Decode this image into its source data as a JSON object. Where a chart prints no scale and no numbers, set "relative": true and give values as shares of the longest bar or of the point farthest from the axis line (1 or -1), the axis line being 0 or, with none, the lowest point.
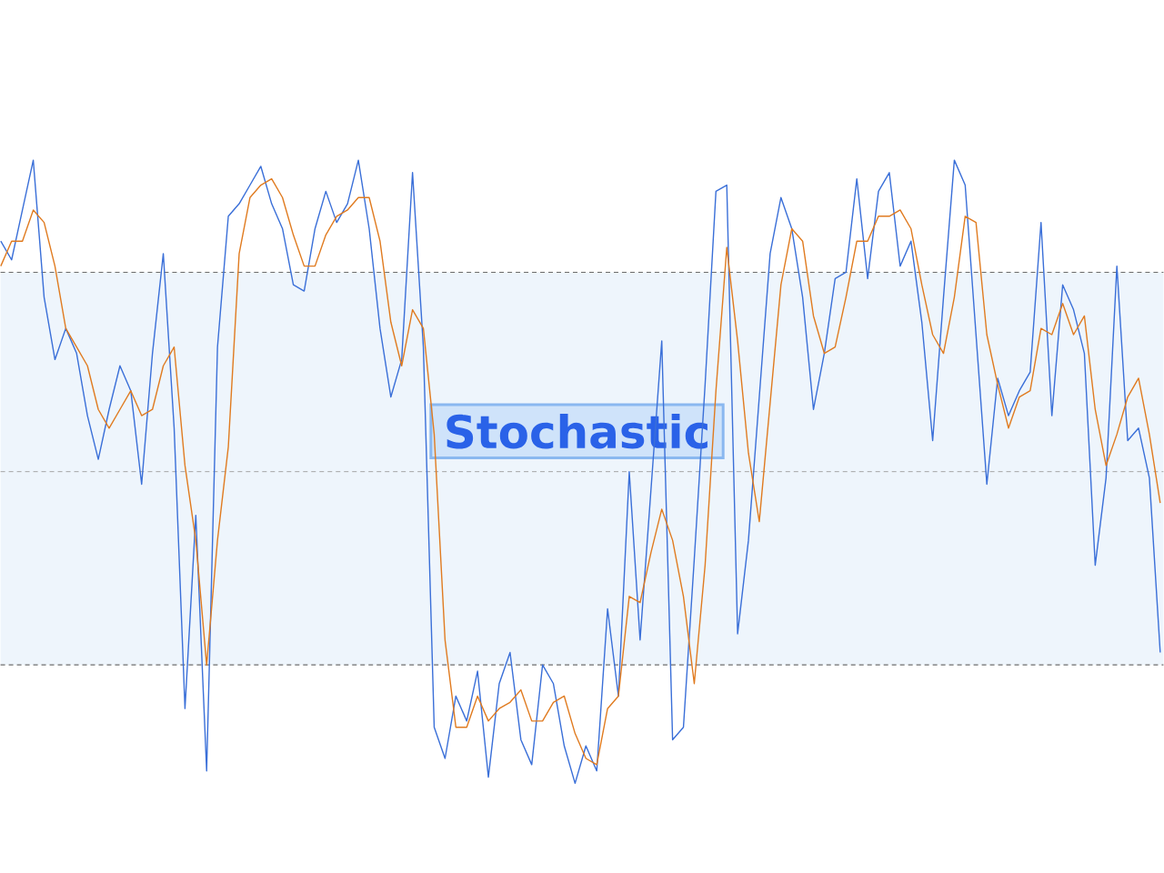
{
  "chart_data": {
    "type": "line",
    "title": "Stochastic",
    "relative": true,
    "categories": [
      null,
      null,
      null,
      null,
      null,
      null,
      null,
      null,
      null,
      null,
      null,
      null,
      null,
      null,
      null,
      null,
      null,
      null,
      null,
      null,
      null,
      null,
      null,
      null,
      null,
      null,
      null,
      null,
      null,
      null,
      null,
      null,
      null,
      null,
      null,
      null,
      null,
      null,
      null,
      null,
      null,
      null,
      null,
      null,
      null,
      null,
      null,
      null,
      null,
      null,
      null,
      null,
      null,
      null,
      null,
      null,
      null,
      null,
      null,
      null,
      null,
      null,
      null,
      null,
      null,
      null,
      null,
      null,
      null,
      null,
      null,
      null,
      null,
      null,
      null,
      null,
      null,
      null,
      null,
      null,
      null,
      null,
      null,
      null,
      null,
      null,
      null,
      null,
      null,
      null,
      null,
      null,
      null,
      null,
      null,
      null,
      null,
      null,
      null,
      null,
      null,
      null,
      null,
      null,
      null,
      null,
      null,
      null
    ],
    "series": [
      {
        "color": "#3a6fd8",
        "values": [
          0.87,
          0.84,
          0.92,
          1.0,
          0.78,
          0.68,
          0.73,
          0.69,
          0.59,
          0.52,
          0.6,
          0.67,
          0.63,
          0.48,
          0.69,
          0.85,
          0.57,
          0.12,
          0.43,
          0.02,
          0.7,
          0.91,
          0.93,
          0.96,
          0.99,
          0.93,
          0.89,
          0.8,
          0.79,
          0.89,
          0.95,
          0.9,
          0.93,
          1.0,
          0.89,
          0.73,
          0.62,
          0.68,
          0.98,
          0.7,
          0.09,
          0.04,
          0.14,
          0.1,
          0.18,
          0.01,
          0.16,
          0.21,
          0.07,
          0.03,
          0.19,
          0.16,
          0.06,
          0,
          0.06,
          0.02,
          0.28,
          0.14,
          0.5,
          0.23,
          0.47,
          0.71,
          0.07,
          0.09,
          0.36,
          0.64,
          0.95,
          0.96,
          0.24,
          0.39,
          0.62,
          0.85,
          0.94,
          0.89,
          0.78,
          0.6,
          0.69,
          0.81,
          0.82,
          0.97,
          0.81,
          0.95,
          0.98,
          0.83,
          0.87,
          0.74,
          0.55,
          0.78,
          1.0,
          0.96,
          0.72,
          0.48,
          0.65,
          0.59,
          0.63,
          0.66,
          0.9,
          0.59,
          0.8,
          0.76,
          0.69,
          0.35,
          0.49,
          0.83,
          0.55,
          0.57,
          0.49,
          0.21
        ]
      },
      {
        "color": "#e07b20",
        "values": [
          0.83,
          0.87,
          0.87,
          0.92,
          0.9,
          0.83,
          0.73,
          0.7,
          0.67,
          0.6,
          0.57,
          0.6,
          0.63,
          0.59,
          0.6,
          0.67,
          0.7,
          0.51,
          0.39,
          0.19,
          0.39,
          0.54,
          0.85,
          0.94,
          0.96,
          0.97,
          0.94,
          0.88,
          0.83,
          0.83,
          0.88,
          0.91,
          0.92,
          0.94,
          0.94,
          0.87,
          0.74,
          0.67,
          0.76,
          0.73,
          0.56,
          0.23,
          0.09,
          0.09,
          0.14,
          0.1,
          0.12,
          0.13,
          0.15,
          0.1,
          0.1,
          0.13,
          0.14,
          0.08,
          0.04,
          0.03,
          0.12,
          0.14,
          0.3,
          0.29,
          0.37,
          0.44,
          0.39,
          0.3,
          0.16,
          0.35,
          0.63,
          0.86,
          0.71,
          0.53,
          0.42,
          0.61,
          0.8,
          0.89,
          0.87,
          0.75,
          0.69,
          0.7,
          0.78,
          0.87,
          0.87,
          0.91,
          0.91,
          0.92,
          0.89,
          0.8,
          0.72,
          0.69,
          0.78,
          0.91,
          0.9,
          0.72,
          0.64,
          0.57,
          0.62,
          0.63,
          0.73,
          0.72,
          0.77,
          0.72,
          0.75,
          0.6,
          0.51,
          0.56,
          0.62,
          0.65,
          0.56,
          0.45
        ]
      }
    ],
    "ref_lines": [
      {
        "axis": "y",
        "value": 0.82,
        "color": "#6e6e6e",
        "line_style": "dashed"
      },
      {
        "axis": "y",
        "value": 0.5,
        "color": "#9a9a9a",
        "line_style": "dashed"
      },
      {
        "axis": "y",
        "value": 0.19,
        "color": "#6e6e6e",
        "line_style": "dashed"
      }
    ],
    "bands": [
      {
        "axis": "y",
        "from": 0.19,
        "to": 0.82,
        "color": "#eef5fc"
      }
    ],
    "line_style": "solid",
    "marker": "none"
  }
}
